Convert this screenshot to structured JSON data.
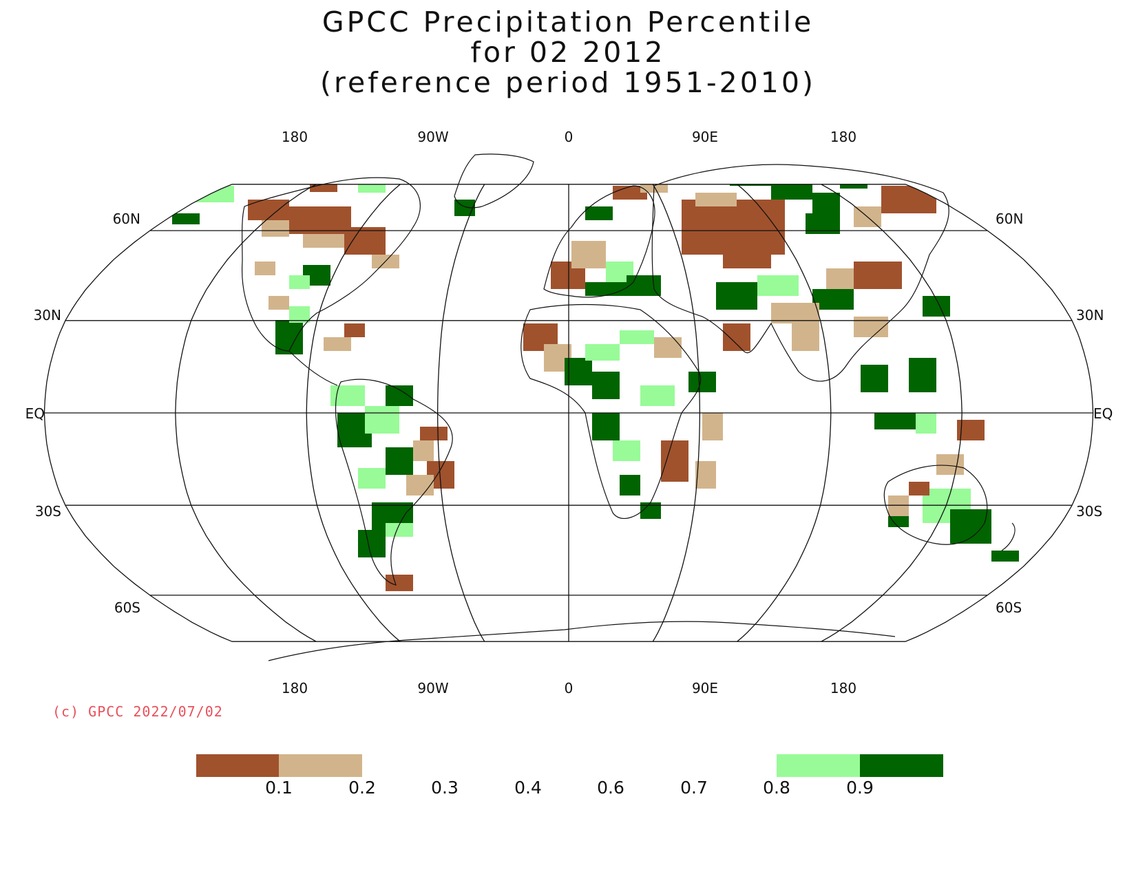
{
  "title": {
    "line1": "GPCC Precipitation Percentile",
    "line2": "for 02 2012",
    "line3": "(reference period 1951-2010)"
  },
  "axes": {
    "lon_labels": [
      "180",
      "90W",
      "0",
      "90E",
      "180"
    ],
    "lat_labels_left": [
      "60N",
      "30N",
      "EQ",
      "30S",
      "60S"
    ],
    "lat_labels_right": [
      "60N",
      "30N",
      "EQ",
      "30S",
      "60S"
    ],
    "projection": "Robinson-like (world, elliptical)",
    "meridians": [
      "180",
      "135W",
      "90W",
      "45W",
      "0",
      "45E",
      "90E",
      "135E",
      "180"
    ],
    "parallels": [
      "60N",
      "30N",
      "EQ",
      "30S",
      "60S"
    ]
  },
  "copyright": "(c) GPCC 2022/07/02",
  "legend": {
    "tick_labels": [
      "0.1",
      "0.2",
      "0.3",
      "0.4",
      "0.6",
      "0.7",
      "0.8",
      "0.9"
    ],
    "classes": [
      {
        "range": "< 0.1",
        "color": "#a0522d"
      },
      {
        "range": "0.1 - 0.2",
        "color": "#d2b48c"
      },
      {
        "range": "0.8 - 0.9",
        "color": "#98fb98"
      },
      {
        "range": "> 0.9",
        "color": "#006400"
      }
    ]
  },
  "colors": {
    "very_dry": "#a0522d",
    "dry": "#d2b48c",
    "wet": "#98fb98",
    "very_wet": "#006400",
    "copyright": "#e8505b"
  }
}
